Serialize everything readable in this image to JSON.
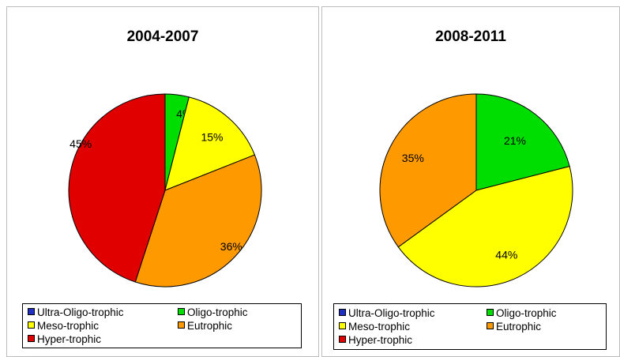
{
  "colors": {
    "Ultra-Oligo-trophic": "#1f2fc2",
    "Oligo-trophic": "#00dd00",
    "Meso-trophic": "#ffff00",
    "Eutrophic": "#ff9900",
    "Hyper-trophic": "#e00000"
  },
  "legend": [
    "Ultra-Oligo-trophic",
    "Oligo-trophic",
    "Meso-trophic",
    "Eutrophic",
    "Hyper-trophic"
  ],
  "chart_data": [
    {
      "type": "pie",
      "title": "2004-2007",
      "categories": [
        "Ultra-Oligo-trophic",
        "Oligo-trophic",
        "Meso-trophic",
        "Eutrophic",
        "Hyper-trophic"
      ],
      "values": [
        0,
        4,
        15,
        36,
        45
      ],
      "labels": [
        "",
        "4%",
        "15%",
        "36%",
        "45%"
      ],
      "legend_position": "bottom"
    },
    {
      "type": "pie",
      "title": "2008-2011",
      "categories": [
        "Ultra-Oligo-trophic",
        "Oligo-trophic",
        "Meso-trophic",
        "Eutrophic",
        "Hyper-trophic"
      ],
      "values": [
        0,
        21,
        44,
        35,
        0
      ],
      "labels": [
        "",
        "21%",
        "44%",
        "35%",
        ""
      ],
      "legend_position": "bottom"
    }
  ]
}
